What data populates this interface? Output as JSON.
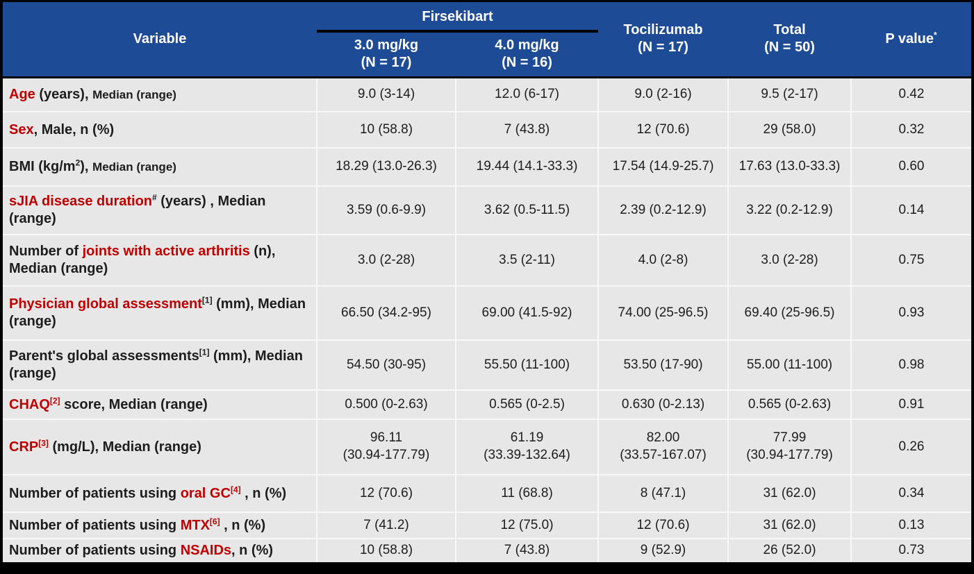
{
  "colors": {
    "header_bg": "#1e4b96",
    "row_bg": "#e8e7e7",
    "accent_red": "#c00000",
    "frame_black": "#000000",
    "divider": "#f8f8f8",
    "header_text": "#ffffff",
    "body_text": "#1d1d1d"
  },
  "header": {
    "variable": "Variable",
    "group": "Firsekibart",
    "subcols": [
      {
        "line1": "3.0 mg/kg",
        "line2": "(N = 17)"
      },
      {
        "line1": "4.0 mg/kg",
        "line2": "(N = 16)"
      }
    ],
    "cols": [
      {
        "line1": "Tocilizumab",
        "line2": "(N = 17)"
      },
      {
        "line1": "Total",
        "line2": "(N = 50)"
      }
    ],
    "pvalue": {
      "label": "P value",
      "sup": "*"
    }
  },
  "rows": [
    {
      "label": [
        {
          "t": "Age",
          "red": true
        },
        {
          "t": " (years), "
        },
        {
          "t": "Median (range)",
          "small": true
        }
      ],
      "values": [
        "9.0 (3-14)",
        "12.0 (6-17)",
        "9.0 (2-16)",
        "9.5 (2-17)",
        "0.42"
      ]
    },
    {
      "label": [
        {
          "t": "Sex",
          "red": true
        },
        {
          "t": ", Male, n (%)"
        }
      ],
      "values": [
        "10 (58.8)",
        "7 (43.8)",
        "12 (70.6)",
        "29 (58.0)",
        "0.32"
      ]
    },
    {
      "label": [
        {
          "t": "BMI (kg/m"
        },
        {
          "t": "2",
          "sup": true
        },
        {
          "t": "), "
        },
        {
          "t": "Median (range)",
          "small": true
        }
      ],
      "values": [
        "18.29 (13.0-26.3)",
        "19.44 (14.1-33.3)",
        "17.54 (14.9-25.7)",
        "17.63 (13.0-33.3)",
        "0.60"
      ]
    },
    {
      "label": [
        {
          "t": "sJIA disease duration",
          "red": true
        },
        {
          "t": "#",
          "sup": true
        },
        {
          "t": " (years) , Median (range)"
        }
      ],
      "values": [
        "3.59 (0.6-9.9)",
        "3.62 (0.5-11.5)",
        "2.39 (0.2-12.9)",
        "3.22 (0.2-12.9)",
        "0.14"
      ]
    },
    {
      "label": [
        {
          "t": "Number of "
        },
        {
          "t": "joints with active arthritis",
          "red": true
        },
        {
          "t": " (n), Median (range)"
        }
      ],
      "values": [
        "3.0 (2-28)",
        "3.5 (2-11)",
        "4.0 (2-8)",
        "3.0 (2-28)",
        "0.75"
      ]
    },
    {
      "label": [
        {
          "t": "Physician global assessment",
          "red": true
        },
        {
          "t": "[1]",
          "sup": true
        },
        {
          "t": " (mm), Median (range)"
        }
      ],
      "values": [
        "66.50 (34.2-95)",
        "69.00 (41.5-92)",
        "74.00 (25-96.5)",
        "69.40 (25-96.5)",
        "0.93"
      ]
    },
    {
      "label": [
        {
          "t": "Parent's global assessments"
        },
        {
          "t": "[1]",
          "sup": true
        },
        {
          "t": " (mm), Median (range)"
        }
      ],
      "values": [
        "54.50 (30-95)",
        "55.50 (11-100)",
        "53.50 (17-90)",
        "55.00 (11-100)",
        "0.98"
      ]
    },
    {
      "label": [
        {
          "t": "CHAQ",
          "red": true
        },
        {
          "t": "[2]",
          "sup": true,
          "red": true
        },
        {
          "t": "  score, Median (range)"
        }
      ],
      "values": [
        "0.500 (0-2.63)",
        "0.565 (0-2.5)",
        "0.630 (0-2.13)",
        "0.565 (0-2.63)",
        "0.91"
      ]
    },
    {
      "label": [
        {
          "t": "CRP",
          "red": true
        },
        {
          "t": "[3]",
          "sup": true,
          "red": true
        },
        {
          "t": "  (mg/L), Median (range)"
        }
      ],
      "values": [
        "96.11\n(30.94-177.79)",
        "61.19\n(33.39-132.64)",
        "82.00\n(33.57-167.07)",
        "77.99\n(30.94-177.79)",
        "0.26"
      ]
    },
    {
      "label": [
        {
          "t": "Number of patients using "
        },
        {
          "t": "oral GC",
          "red": true
        },
        {
          "t": "[4]",
          "sup": true,
          "red": true
        },
        {
          "t": " , n (%)"
        }
      ],
      "values": [
        "12 (70.6)",
        "11 (68.8)",
        "8 (47.1)",
        "31 (62.0)",
        "0.34"
      ]
    },
    {
      "label": [
        {
          "t": "Number of patients using "
        },
        {
          "t": "MTX",
          "red": true
        },
        {
          "t": "[6]",
          "sup": true,
          "red": true
        },
        {
          "t": " , n (%)"
        }
      ],
      "values": [
        "7 (41.2)",
        "12 (75.0)",
        "12 (70.6)",
        "31 (62.0)",
        "0.13"
      ]
    },
    {
      "label": [
        {
          "t": "Number of patients using "
        },
        {
          "t": "NSAIDs",
          "red": true
        },
        {
          "t": ", n (%)"
        }
      ],
      "values": [
        "10 (58.8)",
        "7 (43.8)",
        "9 (52.9)",
        "26 (52.0)",
        "0.73"
      ]
    }
  ]
}
